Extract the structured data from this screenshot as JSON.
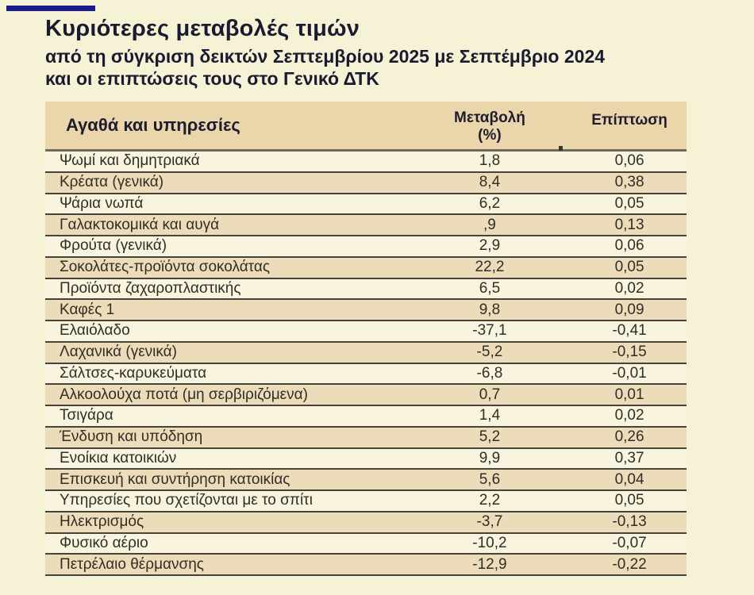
{
  "page": {
    "title": "Κυριότερες μεταβολές τιμών",
    "subtitle_line1": "από τη σύγκριση δεικτών Σεπτεμβρίου 2025 με Σεπτέμβριο 2024",
    "subtitle_line2": "και οι επιπτώσεις τους στο Γενικό ΔΤΚ"
  },
  "colors": {
    "background": "#f5f2d6",
    "accent_bar": "#1b1b8a",
    "header_bg": "#ebd5aa",
    "row_alt_bg": "#eddcba",
    "row_plain_bg": "#f8f4de",
    "title_text": "#1a1b30",
    "body_text": "#302e26",
    "row_border": "#46443a"
  },
  "table": {
    "header": {
      "goods": "Αγαθά και υπηρεσίες",
      "change_line1": "Μεταβολή",
      "change_line2": "(%)",
      "impact": "Επίπτωση"
    },
    "rows": [
      {
        "label": "Ψωμί και δημητριακά",
        "change": "1,8",
        "impact": "0,06"
      },
      {
        "label": "Κρέατα (γενικά)",
        "change": "8,4",
        "impact": "0,38"
      },
      {
        "label": "Ψάρια νωπά",
        "change": "6,2",
        "impact": "0,05"
      },
      {
        "label": "Γαλακτοκομικά και αυγά",
        "change": ",9",
        "impact": "0,13"
      },
      {
        "label": "Φρούτα (γενικά)",
        "change": "2,9",
        "impact": "0,06"
      },
      {
        "label": "Σοκολάτες-προϊόντα σοκολάτας",
        "change": "22,2",
        "impact": "0,05"
      },
      {
        "label": "Προϊόντα ζαχαροπλαστικής",
        "change": "6,5",
        "impact": "0,02"
      },
      {
        "label": "Καφές 1",
        "change": "9,8",
        "impact": "0,09"
      },
      {
        "label": "Ελαιόλαδο",
        "change": "-37,1",
        "impact": "-0,41"
      },
      {
        "label": "Λαχανικά (γενικά)",
        "change": "-5,2",
        "impact": "-0,15"
      },
      {
        "label": "Σάλτσες-καρυκεύματα",
        "change": "-6,8",
        "impact": "-0,01"
      },
      {
        "label": "Αλκοολούχα ποτά (μη σερβιριζόμενα)",
        "change": "0,7",
        "impact": "0,01"
      },
      {
        "label": "Τσιγάρα",
        "change": "1,4",
        "impact": "0,02"
      },
      {
        "label": "Ένδυση και υπόδηση",
        "change": "5,2",
        "impact": "0,26"
      },
      {
        "label": "Ενοίκια κατοικιών",
        "change": "9,9",
        "impact": "0,37"
      },
      {
        "label": "Επισκευή και συντήρηση κατοικίας",
        "change": "5,6",
        "impact": "0,04"
      },
      {
        "label": "Υπηρεσίες που σχετίζονται με το σπίτι",
        "change": "2,2",
        "impact": "0,05"
      },
      {
        "label": "Ηλεκτρισμός",
        "change": "-3,7",
        "impact": "-0,13"
      },
      {
        "label": "Φυσικό αέριο",
        "change": "-10,2",
        "impact": "-0,07"
      },
      {
        "label": "Πετρέλαιο θέρμανσης",
        "change": "-12,9",
        "impact": "-0,22"
      }
    ]
  },
  "chart_data": {
    "type": "table",
    "title": "Κυριότερες μεταβολές τιμών",
    "subtitle": "από τη σύγκριση δεικτών Σεπτεμβρίου 2025 με Σεπτέμβριο 2024 και οι επιπτώσεις τους στο Γενικό ΔΤΚ",
    "columns": [
      "Αγαθά και υπηρεσίες",
      "Μεταβολή (%)",
      "Επίπτωση"
    ],
    "categories": [
      "Ψωμί και δημητριακά",
      "Κρέατα (γενικά)",
      "Ψάρια νωπά",
      "Γαλακτοκομικά και αυγά",
      "Φρούτα (γενικά)",
      "Σοκολάτες-προϊόντα σοκολάτας",
      "Προϊόντα ζαχαροπλαστικής",
      "Καφές 1",
      "Ελαιόλαδο",
      "Λαχανικά (γενικά)",
      "Σάλτσες-καρυκεύματα",
      "Αλκοολούχα ποτά (μη σερβιριζόμενα)",
      "Τσιγάρα",
      "Ένδυση και υπόδηση",
      "Ενοίκια κατοικιών",
      "Επισκευή και συντήρηση κατοικίας",
      "Υπηρεσίες που σχετίζονται με το σπίτι",
      "Ηλεκτρισμός",
      "Φυσικό αέριο",
      "Πετρέλαιο θέρμανσης"
    ],
    "series": [
      {
        "name": "Μεταβολή (%)",
        "values": [
          1.8,
          8.4,
          6.2,
          0.9,
          2.9,
          22.2,
          6.5,
          9.8,
          -37.1,
          -5.2,
          -6.8,
          0.7,
          1.4,
          5.2,
          9.9,
          5.6,
          2.2,
          -3.7,
          -10.2,
          -12.9
        ]
      },
      {
        "name": "Επίπτωση",
        "values": [
          0.06,
          0.38,
          0.05,
          0.13,
          0.06,
          0.05,
          0.02,
          0.09,
          -0.41,
          -0.15,
          -0.01,
          0.01,
          0.02,
          0.26,
          0.37,
          0.04,
          0.05,
          -0.13,
          -0.07,
          -0.22
        ]
      }
    ]
  }
}
